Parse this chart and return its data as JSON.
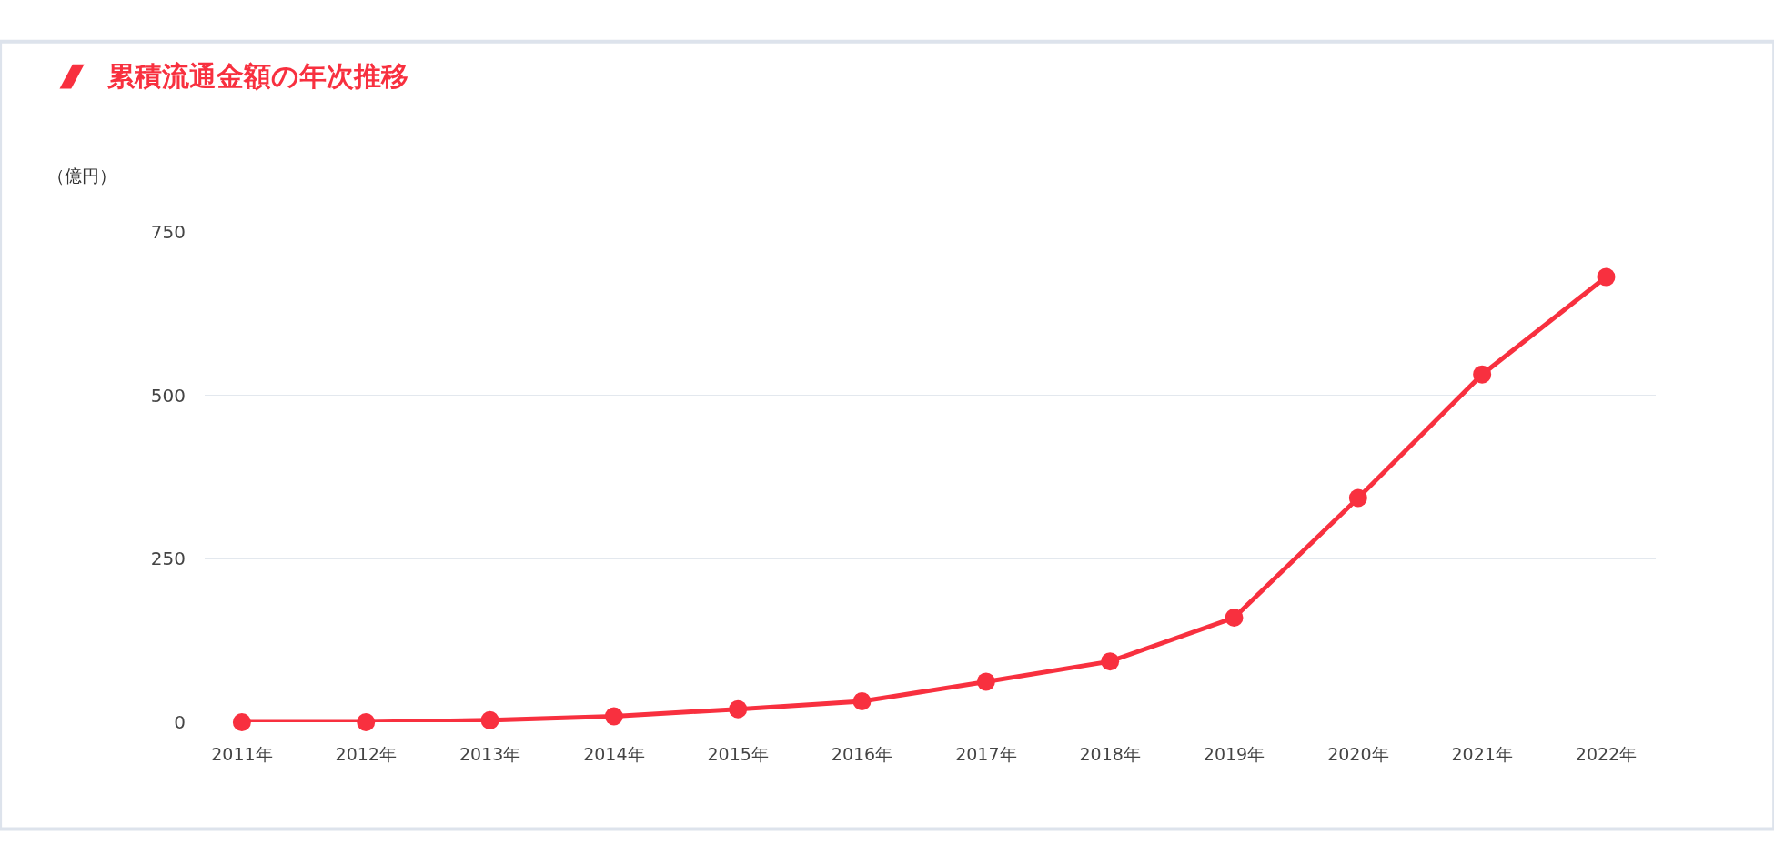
{
  "chart_data": {
    "type": "line",
    "title": "累積流通金額の年次推移",
    "ylabel": "（億円）",
    "categories": [
      "2011年",
      "2012年",
      "2013年",
      "2014年",
      "2015年",
      "2016年",
      "2017年",
      "2018年",
      "2019年",
      "2020年",
      "2021年",
      "2022年"
    ],
    "series": [
      {
        "color": "#f8303f",
        "values": [
          0,
          0,
          3,
          9,
          20,
          32,
          62,
          93,
          160,
          343,
          532,
          681
        ]
      }
    ],
    "ylim": [
      0,
      750
    ],
    "yticks": [
      0,
      250,
      500,
      750
    ],
    "grid": "y",
    "legend": false,
    "marker": "circle",
    "line_style": "solid"
  }
}
